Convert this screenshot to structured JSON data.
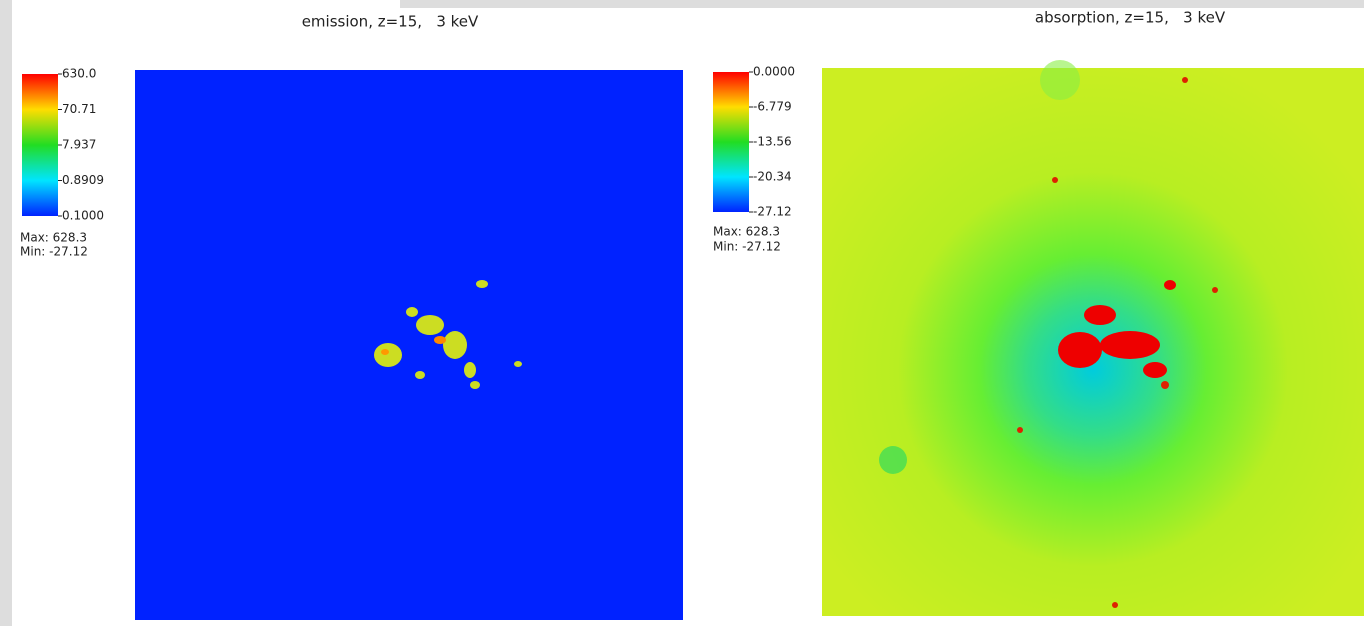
{
  "panels": [
    {
      "title": "emission, z=15,   3 keV",
      "colorbar": {
        "labels": [
          "630.0",
          "70.71",
          "7.937",
          "0.8909",
          "0.1000"
        ]
      },
      "max": "Max: 628.3",
      "min": "Min: -27.12"
    },
    {
      "title": "absorption, z=15,   3 keV",
      "colorbar": {
        "labels": [
          "0.0000",
          "-6.779",
          "-13.56",
          "-20.34",
          "-27.12"
        ]
      },
      "max": "Max: 628.3",
      "min": "Min: -27.12"
    }
  ]
}
